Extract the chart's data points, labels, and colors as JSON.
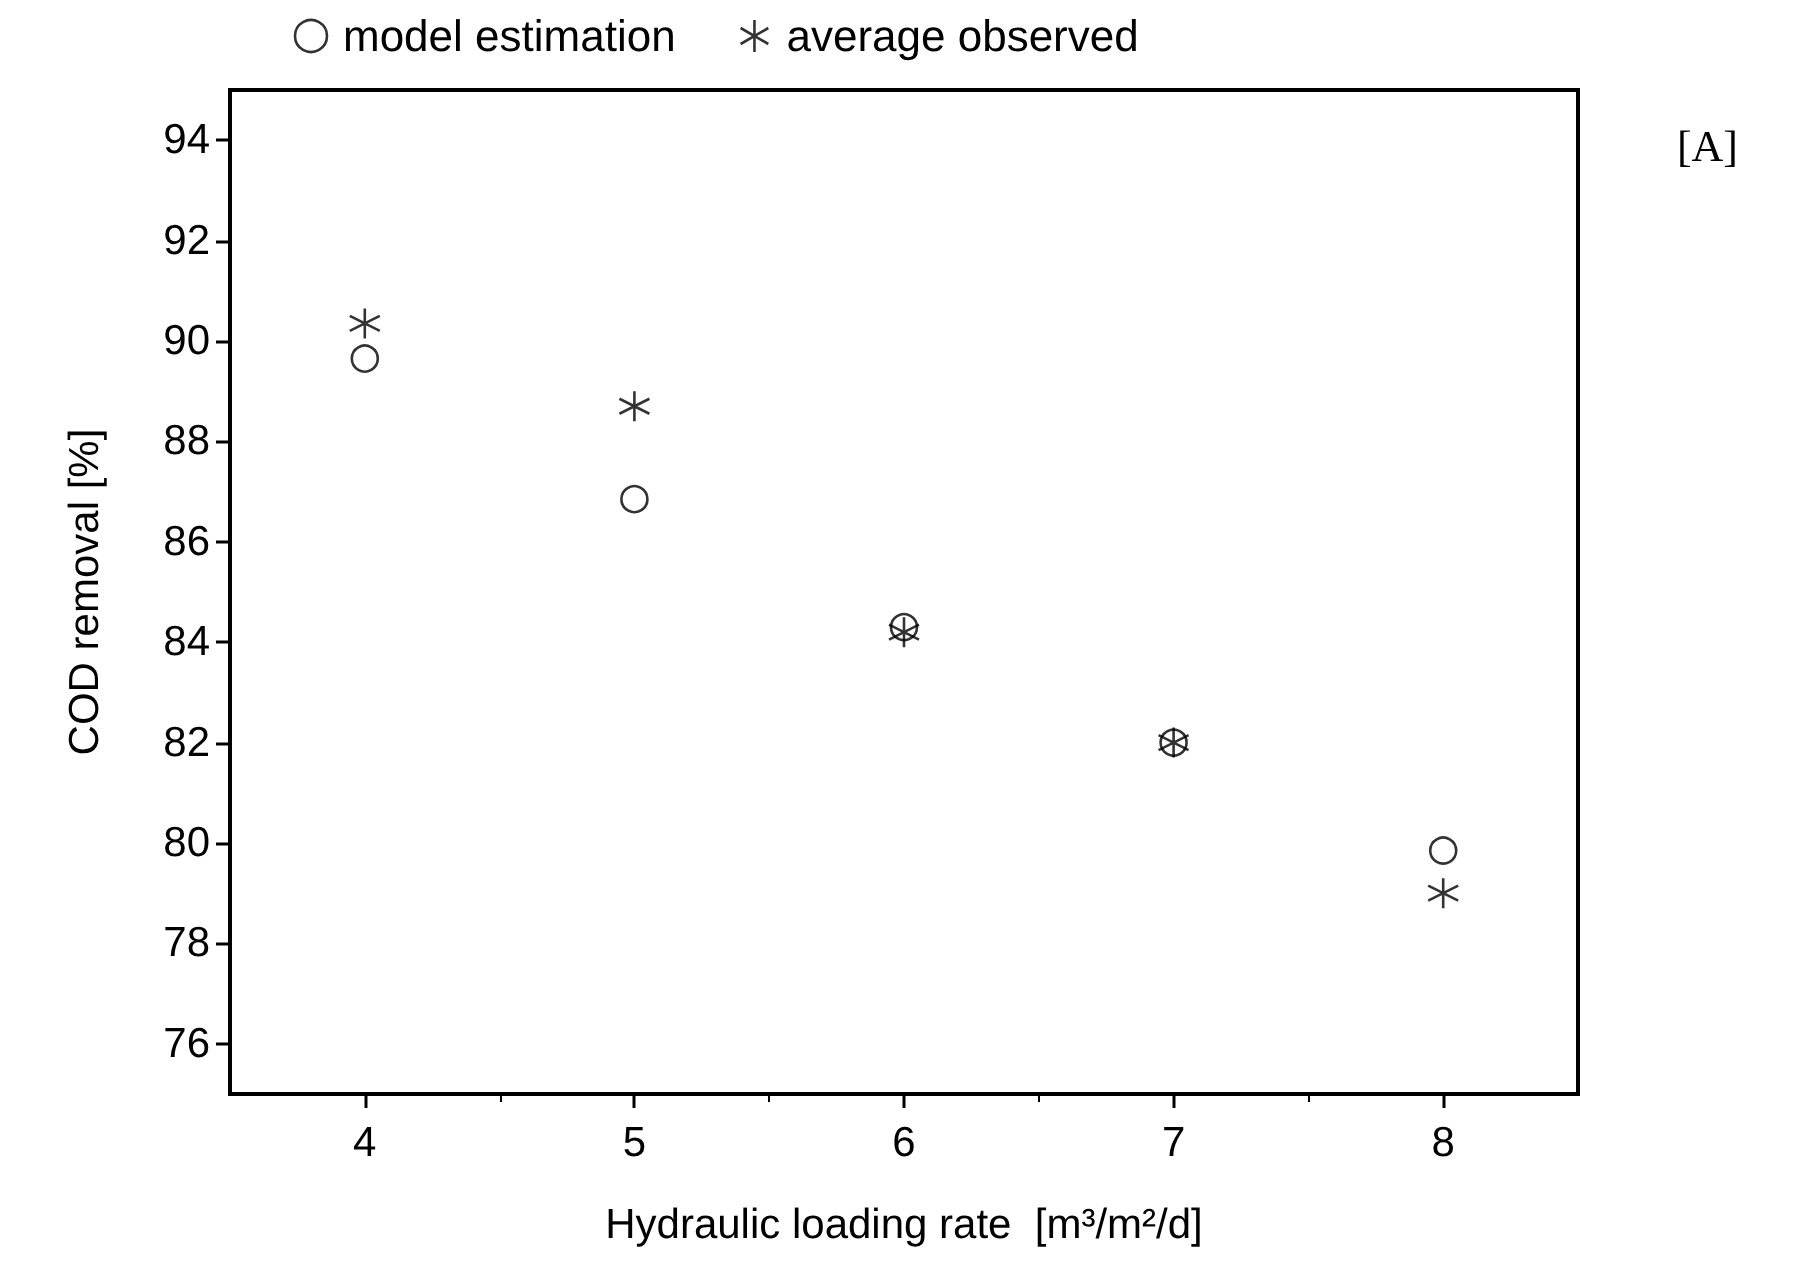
{
  "chart_data": {
    "type": "scatter",
    "xlabel": "Hydraulic loading rate  [m³/m²/d]",
    "ylabel": "COD removal [%]",
    "annotations": [
      "[A]"
    ],
    "x": [
      4,
      5,
      6,
      7,
      8
    ],
    "series": [
      {
        "name": "model estimation",
        "color": "#000000",
        "marker": "circle",
        "values": [
          89.65,
          86.85,
          84.3,
          82.0,
          79.85
        ]
      },
      {
        "name": "average observed",
        "color": "#000000",
        "marker": "cross",
        "values": [
          90.35,
          88.7,
          84.2,
          82.0,
          79.0
        ]
      }
    ],
    "xlim": [
      3.5,
      8.5
    ],
    "xticks": [
      4,
      5,
      6,
      7,
      8
    ],
    "ylim": [
      75,
      95
    ],
    "yticks": [
      76,
      78,
      80,
      82,
      84,
      86,
      88,
      90,
      92,
      94
    ],
    "grid": false,
    "legend": "top"
  }
}
